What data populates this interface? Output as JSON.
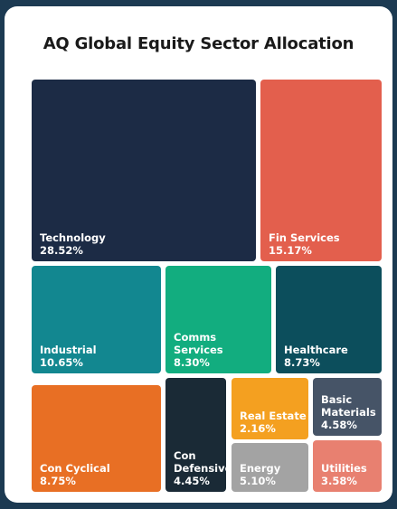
{
  "chart_data": {
    "type": "treemap",
    "title": "AQ Global Equity Sector Allocation",
    "items": [
      {
        "name": "Technology",
        "value": 28.52,
        "value_label": "28.52%",
        "color": "#1c2b45"
      },
      {
        "name": "Fin Services",
        "value": 15.17,
        "value_label": "15.17%",
        "color": "#e35f4d"
      },
      {
        "name": "Industrial",
        "value": 10.65,
        "value_label": "10.65%",
        "color": "#128790"
      },
      {
        "name": "Comms Services",
        "value": 8.3,
        "value_label": "8.30%",
        "color": "#12ad7f"
      },
      {
        "name": "Healthcare",
        "value": 8.73,
        "value_label": "8.73%",
        "color": "#0c4e5c"
      },
      {
        "name": "Con Cyclical",
        "value": 8.75,
        "value_label": "8.75%",
        "color": "#e86f24"
      },
      {
        "name": "Con Defensive",
        "value": 4.45,
        "value_label": "4.45%",
        "color": "#1a2a36"
      },
      {
        "name": "Real Estate",
        "value": 2.16,
        "value_label": "2.16%",
        "color": "#f4a020"
      },
      {
        "name": "Basic Materials",
        "value": 4.58,
        "value_label": "4.58%",
        "color": "#465467"
      },
      {
        "name": "Energy",
        "value": 5.1,
        "value_label": "5.10%",
        "color": "#a3a3a3"
      },
      {
        "name": "Utilities",
        "value": 3.58,
        "value_label": "3.58%",
        "color": "#e88070"
      }
    ]
  }
}
